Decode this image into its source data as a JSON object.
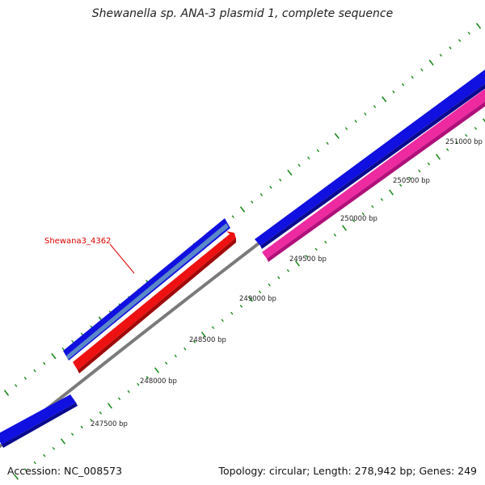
{
  "title": "Shewanella sp. ANA-3 plasmid 1, complete sequence",
  "accession": "Accession: NC_008573",
  "summary": "Topology: circular; Length: 278,942 bp; Genes: 249",
  "gene_label": "Shewana3_4362",
  "colors": {
    "backbone": "#7a7a7a",
    "forward_gene": "#1010e0",
    "selected_gene_inner": "#5a88c8",
    "reverse_gene_red": "#ee1111",
    "reverse_gene_pink": "#ee2aa0",
    "tick": "#1a8a1a",
    "label_line": "#dd0000",
    "label_text": "#dd0000"
  },
  "ticks": [
    {
      "label": "247500 bp"
    },
    {
      "label": "248000 bp"
    },
    {
      "label": "248500 bp"
    },
    {
      "label": "249000 bp"
    },
    {
      "label": "249500 bp"
    },
    {
      "label": "250000 bp"
    },
    {
      "label": "250500 bp"
    },
    {
      "label": "251000 bp"
    }
  ]
}
